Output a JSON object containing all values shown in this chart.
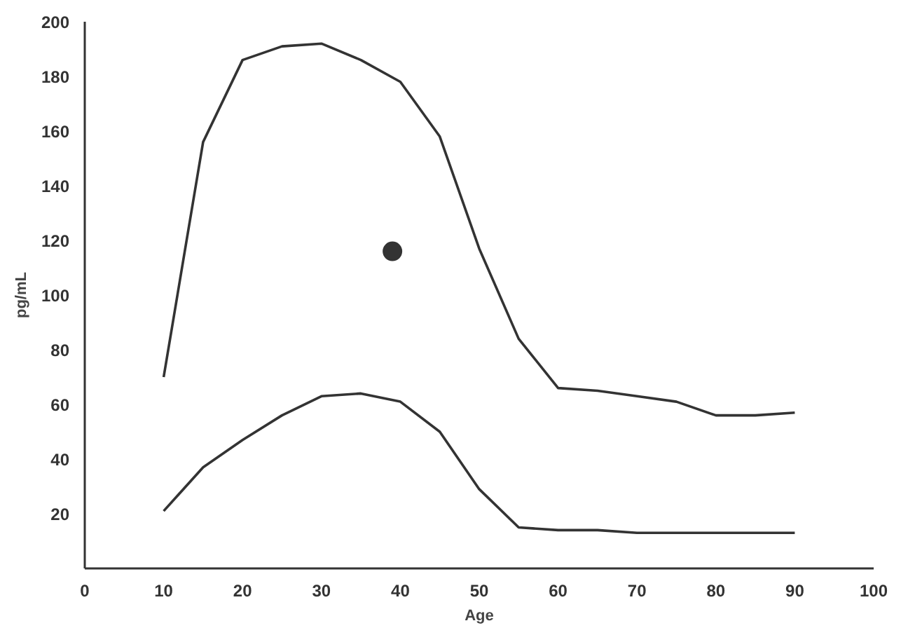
{
  "chart_data": {
    "type": "line",
    "xlabel": "Age",
    "ylabel": "pg/mL",
    "xlim": [
      0,
      100
    ],
    "ylim": [
      0,
      200
    ],
    "xticks": [
      0,
      10,
      20,
      30,
      40,
      50,
      60,
      70,
      80,
      90,
      100
    ],
    "yticks": [
      20,
      40,
      60,
      80,
      100,
      120,
      140,
      160,
      180,
      200
    ],
    "grid": false,
    "marker": "none",
    "line_style": "solid",
    "series": [
      {
        "color": "#333333",
        "x": [
          10,
          15,
          20,
          25,
          30,
          35,
          40,
          45,
          50,
          55,
          60,
          65,
          70,
          75,
          80,
          85,
          90
        ],
        "values": [
          70,
          156,
          186,
          191,
          192,
          186,
          178,
          158,
          117,
          84,
          66,
          65,
          63,
          61,
          56,
          56,
          57
        ]
      },
      {
        "color": "#333333",
        "x": [
          10,
          15,
          20,
          25,
          30,
          35,
          40,
          45,
          50,
          55,
          60,
          65,
          70,
          75,
          80,
          85,
          90
        ],
        "values": [
          21,
          37,
          47,
          56,
          63,
          64,
          61,
          50,
          29,
          15,
          14,
          14,
          13,
          13,
          13,
          13,
          13
        ]
      },
      {
        "type": "scatter",
        "marker": "circle",
        "color": "#333333",
        "x": [
          39
        ],
        "values": [
          116
        ]
      }
    ]
  }
}
